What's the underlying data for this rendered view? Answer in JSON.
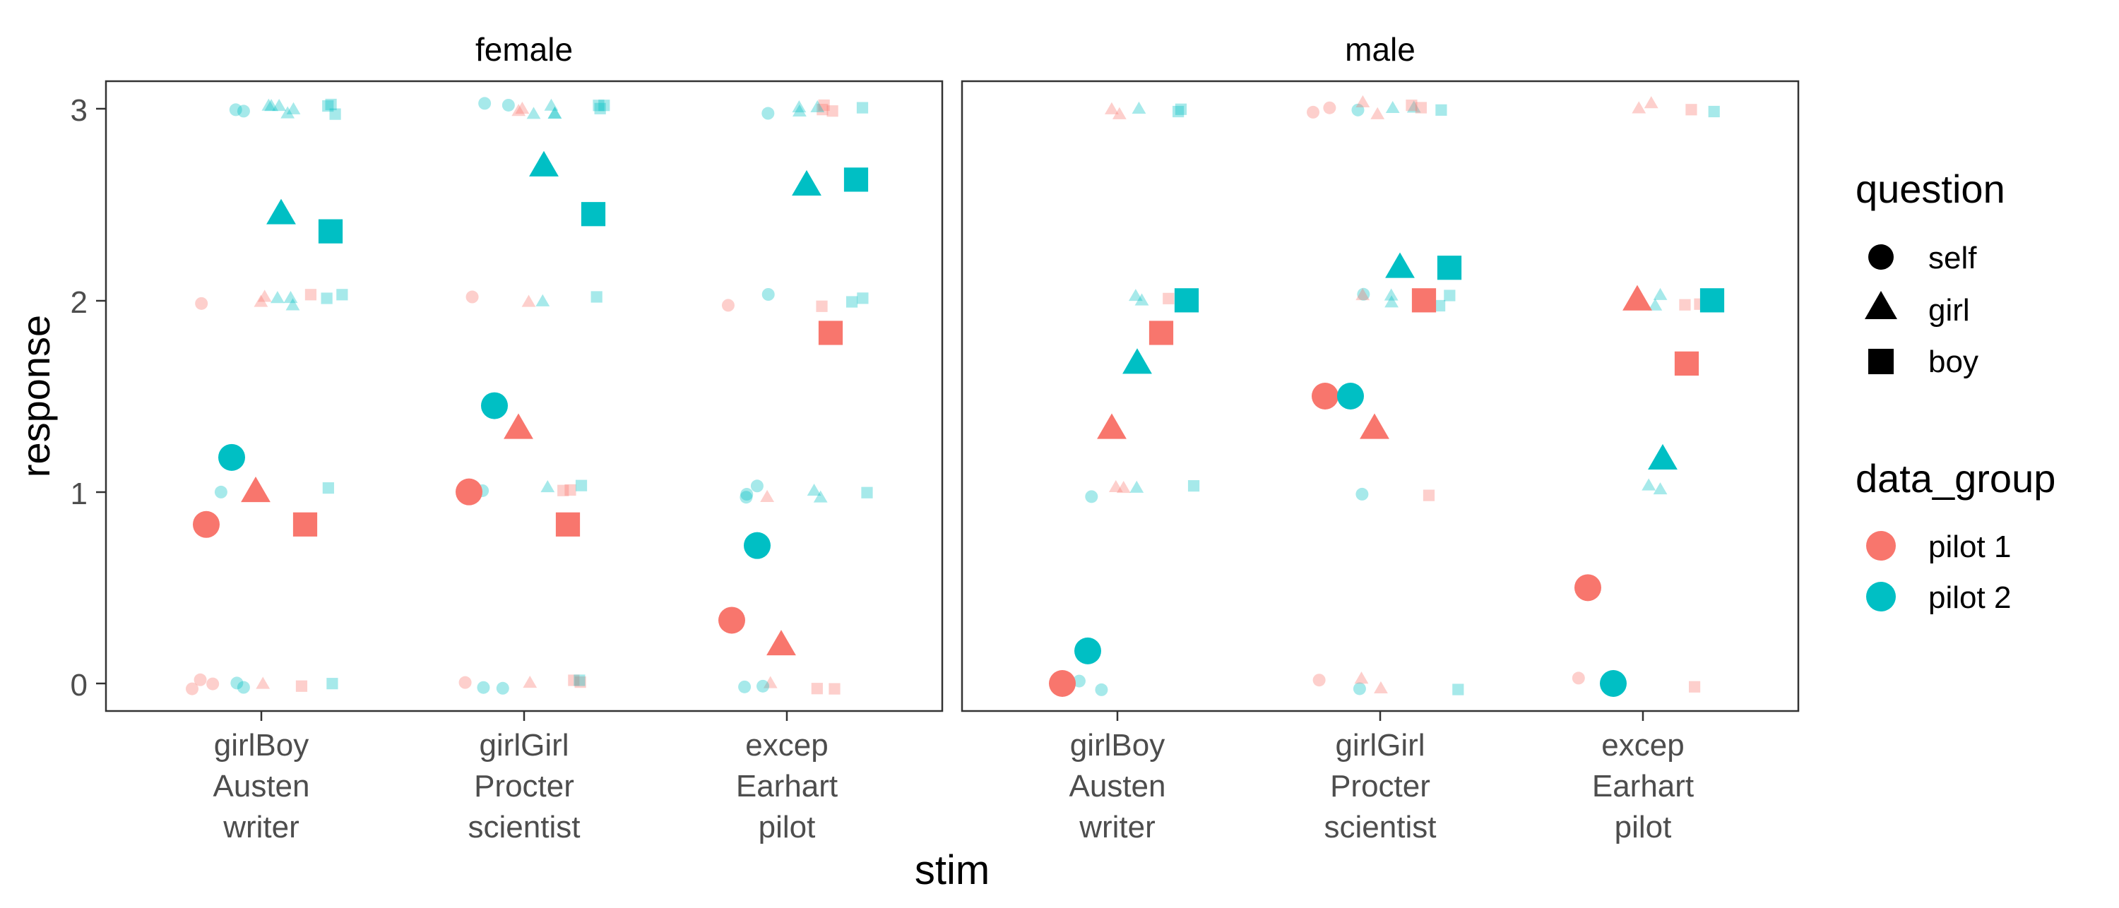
{
  "chart_data": {
    "type": "scatter",
    "title": "",
    "xlabel": "stim",
    "ylabel": "response",
    "ylim": [
      -0.15,
      3.15
    ],
    "yticks": [
      0,
      1,
      2,
      3
    ],
    "grid": false,
    "categories": [
      [
        "girlBoy",
        "Austen",
        "writer"
      ],
      [
        "girlGirl",
        "Procter",
        "scientist"
      ],
      [
        "excep",
        "Earhart",
        "pilot"
      ]
    ],
    "facets": [
      "female",
      "male"
    ],
    "legend": {
      "placement": "right",
      "question": {
        "title": "question",
        "items": [
          {
            "label": "self",
            "shape": "circle"
          },
          {
            "label": "girl",
            "shape": "triangle"
          },
          {
            "label": "boy",
            "shape": "square"
          }
        ]
      },
      "data_group": {
        "title": "data_group",
        "items": [
          {
            "label": "pilot 1",
            "color": "#F8766D"
          },
          {
            "label": "pilot 2",
            "color": "#00BFC4"
          }
        ]
      }
    },
    "means": [
      {
        "facet": "female",
        "stim": "girlBoy",
        "question": "self",
        "group": "pilot 1",
        "y": 0.83
      },
      {
        "facet": "female",
        "stim": "girlBoy",
        "question": "girl",
        "group": "pilot 1",
        "y": 1.0
      },
      {
        "facet": "female",
        "stim": "girlBoy",
        "question": "boy",
        "group": "pilot 1",
        "y": 0.83
      },
      {
        "facet": "female",
        "stim": "girlBoy",
        "question": "self",
        "group": "pilot 2",
        "y": 1.18
      },
      {
        "facet": "female",
        "stim": "girlBoy",
        "question": "girl",
        "group": "pilot 2",
        "y": 2.45
      },
      {
        "facet": "female",
        "stim": "girlBoy",
        "question": "boy",
        "group": "pilot 2",
        "y": 2.36
      },
      {
        "facet": "female",
        "stim": "girlGirl",
        "question": "self",
        "group": "pilot 1",
        "y": 1.0
      },
      {
        "facet": "female",
        "stim": "girlGirl",
        "question": "girl",
        "group": "pilot 1",
        "y": 1.33
      },
      {
        "facet": "female",
        "stim": "girlGirl",
        "question": "boy",
        "group": "pilot 1",
        "y": 0.83
      },
      {
        "facet": "female",
        "stim": "girlGirl",
        "question": "self",
        "group": "pilot 2",
        "y": 1.45
      },
      {
        "facet": "female",
        "stim": "girlGirl",
        "question": "girl",
        "group": "pilot 2",
        "y": 2.7
      },
      {
        "facet": "female",
        "stim": "girlGirl",
        "question": "boy",
        "group": "pilot 2",
        "y": 2.45
      },
      {
        "facet": "female",
        "stim": "excep",
        "question": "self",
        "group": "pilot 1",
        "y": 0.33
      },
      {
        "facet": "female",
        "stim": "excep",
        "question": "girl",
        "group": "pilot 1",
        "y": 0.2
      },
      {
        "facet": "female",
        "stim": "excep",
        "question": "boy",
        "group": "pilot 1",
        "y": 1.83
      },
      {
        "facet": "female",
        "stim": "excep",
        "question": "self",
        "group": "pilot 2",
        "y": 0.72
      },
      {
        "facet": "female",
        "stim": "excep",
        "question": "girl",
        "group": "pilot 2",
        "y": 2.6
      },
      {
        "facet": "female",
        "stim": "excep",
        "question": "boy",
        "group": "pilot 2",
        "y": 2.63
      },
      {
        "facet": "male",
        "stim": "girlBoy",
        "question": "self",
        "group": "pilot 1",
        "y": 0.0
      },
      {
        "facet": "male",
        "stim": "girlBoy",
        "question": "girl",
        "group": "pilot 1",
        "y": 1.33
      },
      {
        "facet": "male",
        "stim": "girlBoy",
        "question": "boy",
        "group": "pilot 1",
        "y": 1.83
      },
      {
        "facet": "male",
        "stim": "girlBoy",
        "question": "self",
        "group": "pilot 2",
        "y": 0.17
      },
      {
        "facet": "male",
        "stim": "girlBoy",
        "question": "girl",
        "group": "pilot 2",
        "y": 1.67
      },
      {
        "facet": "male",
        "stim": "girlBoy",
        "question": "boy",
        "group": "pilot 2",
        "y": 2.0
      },
      {
        "facet": "male",
        "stim": "girlGirl",
        "question": "self",
        "group": "pilot 1",
        "y": 1.5
      },
      {
        "facet": "male",
        "stim": "girlGirl",
        "question": "girl",
        "group": "pilot 1",
        "y": 1.33
      },
      {
        "facet": "male",
        "stim": "girlGirl",
        "question": "boy",
        "group": "pilot 1",
        "y": 2.0
      },
      {
        "facet": "male",
        "stim": "girlGirl",
        "question": "self",
        "group": "pilot 2",
        "y": 1.5
      },
      {
        "facet": "male",
        "stim": "girlGirl",
        "question": "girl",
        "group": "pilot 2",
        "y": 2.17
      },
      {
        "facet": "male",
        "stim": "girlGirl",
        "question": "boy",
        "group": "pilot 2",
        "y": 2.17
      },
      {
        "facet": "male",
        "stim": "excep",
        "question": "self",
        "group": "pilot 1",
        "y": 0.5
      },
      {
        "facet": "male",
        "stim": "excep",
        "question": "girl",
        "group": "pilot 1",
        "y": 2.0
      },
      {
        "facet": "male",
        "stim": "excep",
        "question": "boy",
        "group": "pilot 1",
        "y": 1.67
      },
      {
        "facet": "male",
        "stim": "excep",
        "question": "self",
        "group": "pilot 2",
        "y": 0.0
      },
      {
        "facet": "male",
        "stim": "excep",
        "question": "girl",
        "group": "pilot 2",
        "y": 1.17
      },
      {
        "facet": "male",
        "stim": "excep",
        "question": "boy",
        "group": "pilot 2",
        "y": 2.0
      }
    ],
    "raw": [
      {
        "facet": "female",
        "stim": "girlBoy",
        "question": "self",
        "group": "pilot 1",
        "values": [
          0,
          0,
          0,
          2
        ]
      },
      {
        "facet": "female",
        "stim": "girlBoy",
        "question": "girl",
        "group": "pilot 1",
        "values": [
          0,
          2,
          2
        ]
      },
      {
        "facet": "female",
        "stim": "girlBoy",
        "question": "boy",
        "group": "pilot 1",
        "values": [
          0,
          2
        ]
      },
      {
        "facet": "female",
        "stim": "girlBoy",
        "question": "self",
        "group": "pilot 2",
        "values": [
          0,
          0,
          1,
          3,
          3
        ]
      },
      {
        "facet": "female",
        "stim": "girlBoy",
        "question": "girl",
        "group": "pilot 2",
        "values": [
          2,
          2,
          2,
          3,
          3,
          3,
          3,
          3
        ]
      },
      {
        "facet": "female",
        "stim": "girlBoy",
        "question": "boy",
        "group": "pilot 2",
        "values": [
          0,
          1,
          2,
          2,
          3,
          3,
          3
        ]
      },
      {
        "facet": "female",
        "stim": "girlGirl",
        "question": "self",
        "group": "pilot 1",
        "values": [
          0,
          1,
          2
        ]
      },
      {
        "facet": "female",
        "stim": "girlGirl",
        "question": "girl",
        "group": "pilot 1",
        "values": [
          0,
          2,
          3,
          3
        ]
      },
      {
        "facet": "female",
        "stim": "girlGirl",
        "question": "boy",
        "group": "pilot 1",
        "values": [
          0,
          0,
          1,
          1
        ]
      },
      {
        "facet": "female",
        "stim": "girlGirl",
        "question": "self",
        "group": "pilot 2",
        "values": [
          0,
          0,
          1,
          3,
          3
        ]
      },
      {
        "facet": "female",
        "stim": "girlGirl",
        "question": "girl",
        "group": "pilot 2",
        "values": [
          1,
          2,
          3,
          3,
          3,
          3
        ]
      },
      {
        "facet": "female",
        "stim": "girlGirl",
        "question": "boy",
        "group": "pilot 2",
        "values": [
          0,
          1,
          2,
          3,
          3,
          3
        ]
      },
      {
        "facet": "female",
        "stim": "excep",
        "question": "self",
        "group": "pilot 1",
        "values": [
          2
        ]
      },
      {
        "facet": "female",
        "stim": "excep",
        "question": "girl",
        "group": "pilot 1",
        "values": [
          0,
          1
        ]
      },
      {
        "facet": "female",
        "stim": "excep",
        "question": "boy",
        "group": "pilot 1",
        "values": [
          0,
          0,
          2,
          3,
          3,
          3
        ]
      },
      {
        "facet": "female",
        "stim": "excep",
        "question": "self",
        "group": "pilot 2",
        "values": [
          0,
          0,
          1,
          1,
          1,
          2,
          3
        ]
      },
      {
        "facet": "female",
        "stim": "excep",
        "question": "girl",
        "group": "pilot 2",
        "values": [
          1,
          1,
          3,
          3,
          3
        ]
      },
      {
        "facet": "female",
        "stim": "excep",
        "question": "boy",
        "group": "pilot 2",
        "values": [
          1,
          2,
          2,
          3
        ]
      },
      {
        "facet": "male",
        "stim": "girlBoy",
        "question": "self",
        "group": "pilot 2",
        "values": [
          0,
          0,
          1
        ]
      },
      {
        "facet": "male",
        "stim": "girlBoy",
        "question": "girl",
        "group": "pilot 1",
        "values": [
          1,
          1,
          3,
          3
        ]
      },
      {
        "facet": "male",
        "stim": "girlBoy",
        "question": "girl",
        "group": "pilot 2",
        "values": [
          1,
          2,
          2,
          3
        ]
      },
      {
        "facet": "male",
        "stim": "girlBoy",
        "question": "boy",
        "group": "pilot 1",
        "values": [
          2
        ]
      },
      {
        "facet": "male",
        "stim": "girlBoy",
        "question": "boy",
        "group": "pilot 2",
        "values": [
          1,
          3,
          3
        ]
      },
      {
        "facet": "male",
        "stim": "girlGirl",
        "question": "self",
        "group": "pilot 1",
        "values": [
          0,
          3,
          3
        ]
      },
      {
        "facet": "male",
        "stim": "girlGirl",
        "question": "self",
        "group": "pilot 2",
        "values": [
          0,
          1,
          2,
          3
        ]
      },
      {
        "facet": "male",
        "stim": "girlGirl",
        "question": "girl",
        "group": "pilot 1",
        "values": [
          0,
          0,
          2,
          3,
          3
        ]
      },
      {
        "facet": "male",
        "stim": "girlGirl",
        "question": "girl",
        "group": "pilot 2",
        "values": [
          2,
          2,
          3,
          3
        ]
      },
      {
        "facet": "male",
        "stim": "girlGirl",
        "question": "boy",
        "group": "pilot 1",
        "values": [
          1,
          3,
          3
        ]
      },
      {
        "facet": "male",
        "stim": "girlGirl",
        "question": "boy",
        "group": "pilot 2",
        "values": [
          0,
          2,
          2,
          3
        ]
      },
      {
        "facet": "male",
        "stim": "excep",
        "question": "self",
        "group": "pilot 1",
        "values": [
          0
        ]
      },
      {
        "facet": "male",
        "stim": "excep",
        "question": "self",
        "group": "pilot 2",
        "values": [
          0
        ]
      },
      {
        "facet": "male",
        "stim": "excep",
        "question": "girl",
        "group": "pilot 1",
        "values": [
          3,
          3
        ]
      },
      {
        "facet": "male",
        "stim": "excep",
        "question": "girl",
        "group": "pilot 2",
        "values": [
          1,
          1,
          2,
          2
        ]
      },
      {
        "facet": "male",
        "stim": "excep",
        "question": "boy",
        "group": "pilot 1",
        "values": [
          0,
          2,
          2,
          3
        ]
      },
      {
        "facet": "male",
        "stim": "excep",
        "question": "boy",
        "group": "pilot 2",
        "values": [
          2,
          2,
          3
        ]
      }
    ]
  }
}
